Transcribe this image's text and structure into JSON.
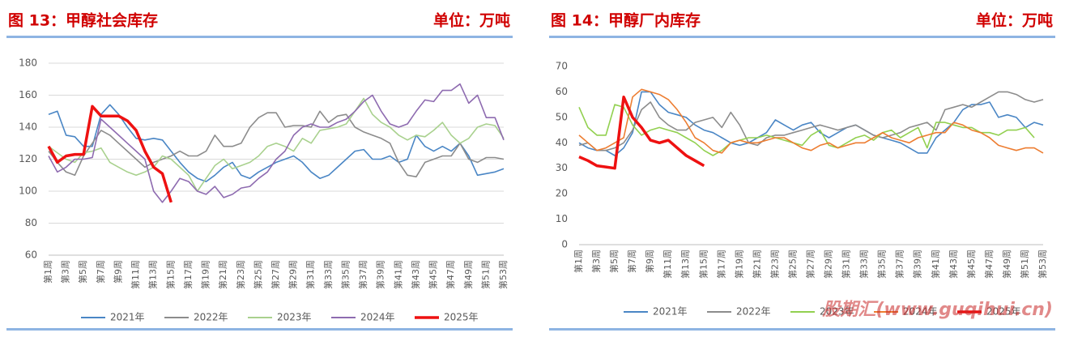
{
  "chart_data": [
    {
      "type": "line",
      "title": "图 13：甲醇社会库存",
      "unit": "单位：万吨",
      "categories": [
        "第1周",
        null,
        "第3周",
        null,
        "第5周",
        null,
        "第7周",
        null,
        "第9周",
        null,
        "第11周",
        null,
        "第13周",
        null,
        "第15周",
        null,
        "第17周",
        null,
        "第19周",
        null,
        "第21周",
        null,
        "第23周",
        null,
        "第25周",
        null,
        "第27周",
        null,
        "第29周",
        null,
        "第31周",
        null,
        "第33周",
        null,
        "第35周",
        null,
        "第37周",
        null,
        "第39周",
        null,
        "第41周",
        null,
        "第43周",
        null,
        "第45周",
        null,
        "第47周",
        null,
        "第49周",
        null,
        "第51周",
        null,
        "第53周"
      ],
      "ylim": [
        60,
        180
      ],
      "yticks": [
        60,
        80,
        100,
        120,
        140,
        160,
        180
      ],
      "grid": true,
      "series": [
        {
          "name": "2021年",
          "color": "#4a86c5",
          "values": [
            148,
            150,
            135,
            134,
            128,
            128,
            148,
            154,
            148,
            140,
            133,
            132,
            133,
            132,
            125,
            118,
            112,
            108,
            106,
            110,
            115,
            118,
            110,
            108,
            112,
            115,
            118,
            120,
            122,
            118,
            112,
            108,
            110,
            115,
            120,
            125,
            126,
            120,
            120,
            122,
            118,
            120,
            135,
            128,
            125,
            128,
            125,
            130,
            122,
            110,
            111,
            112,
            114
          ]
        },
        {
          "name": "2022年",
          "color": "#8c8c8c",
          "values": [
            125,
            118,
            112,
            110,
            122,
            130,
            138,
            135,
            130,
            125,
            120,
            115,
            118,
            120,
            122,
            125,
            122,
            122,
            125,
            135,
            128,
            128,
            130,
            140,
            146,
            149,
            149,
            140,
            141,
            141,
            140,
            150,
            143,
            147,
            148,
            140,
            137,
            135,
            133,
            130,
            118,
            110,
            109,
            118,
            120,
            122,
            122,
            130,
            120,
            118,
            121,
            121,
            120
          ]
        },
        {
          "name": "2023年",
          "color": "#a9d18e",
          "values": [
            128,
            124,
            120,
            118,
            124,
            125,
            127,
            118,
            115,
            112,
            110,
            112,
            115,
            122,
            120,
            115,
            110,
            100,
            108,
            116,
            120,
            114,
            116,
            118,
            122,
            128,
            130,
            128,
            125,
            133,
            130,
            138,
            139,
            140,
            142,
            150,
            158,
            148,
            143,
            140,
            135,
            132,
            135,
            134,
            138,
            143,
            135,
            130,
            133,
            140,
            142,
            141,
            133
          ]
        },
        {
          "name": "2024年",
          "color": "#8e6bb0",
          "values": [
            122,
            112,
            115,
            120,
            120,
            121,
            145,
            140,
            135,
            130,
            125,
            120,
            100,
            93,
            100,
            108,
            106,
            100,
            98,
            103,
            96,
            98,
            102,
            103,
            108,
            112,
            120,
            125,
            135,
            140,
            142,
            140,
            140,
            143,
            145,
            150,
            156,
            160,
            150,
            142,
            140,
            142,
            150,
            157,
            156,
            163,
            163,
            167,
            155,
            160,
            146,
            146,
            132
          ]
        },
        {
          "name": "2025年",
          "color": "#ee1111",
          "values": [
            128,
            118,
            122,
            123,
            123,
            153,
            147,
            147,
            147,
            144,
            138,
            125,
            115,
            111,
            93,
            null,
            null,
            null,
            null,
            null,
            null,
            null,
            null,
            null,
            null,
            null,
            null,
            null,
            null,
            null,
            null,
            null,
            null,
            null,
            null,
            null,
            null,
            null,
            null,
            null,
            null,
            null,
            null,
            null,
            null,
            null,
            null,
            null,
            null,
            null,
            null,
            null,
            null
          ]
        }
      ]
    },
    {
      "type": "line",
      "title": "图 14：甲醇厂内库存",
      "unit": "单位：万吨",
      "categories": [
        "第1周",
        null,
        "第3周",
        null,
        "第5周",
        null,
        "第7周",
        null,
        "第9周",
        null,
        "第11周",
        null,
        "第13周",
        null,
        "第15周",
        null,
        "第17周",
        null,
        "第19周",
        null,
        "第21周",
        null,
        "第23周",
        null,
        "第25周",
        null,
        "第27周",
        null,
        "第29周",
        null,
        "第31周",
        null,
        "第33周",
        null,
        "第35周",
        null,
        "第37周",
        null,
        "第39周",
        null,
        "第41周",
        null,
        "第43周",
        null,
        "第45周",
        null,
        "第47周",
        null,
        "第49周",
        null,
        "第51周",
        null,
        "第53周"
      ],
      "ylim": [
        0,
        70
      ],
      "yticks": [
        0,
        10,
        20,
        30,
        40,
        50,
        60,
        70
      ],
      "grid": false,
      "series": [
        {
          "name": "2021年",
          "color": "#4a86c5",
          "values": [
            40,
            38,
            37,
            37,
            35,
            38,
            44,
            60,
            60,
            55,
            52,
            51,
            50,
            47,
            45,
            44,
            42,
            40,
            39,
            40,
            42,
            44,
            49,
            47,
            45,
            47,
            48,
            44,
            42,
            44,
            46,
            47,
            45,
            43,
            42,
            41,
            40,
            38,
            36,
            36,
            42,
            45,
            48,
            53,
            55,
            55,
            56,
            50,
            51,
            50,
            46,
            48,
            47
          ]
        },
        {
          "name": "2022年",
          "color": "#8c8c8c",
          "values": [
            39,
            40,
            37,
            37,
            38,
            40,
            45,
            53,
            56,
            50,
            47,
            45,
            45,
            48,
            49,
            50,
            46,
            52,
            47,
            40,
            39,
            42,
            43,
            43,
            44,
            45,
            46,
            47,
            46,
            45,
            46,
            47,
            45,
            43,
            42,
            43,
            44,
            46,
            47,
            48,
            45,
            53,
            54,
            55,
            54,
            56,
            58,
            60,
            60,
            59,
            57,
            56,
            57
          ]
        },
        {
          "name": "2023年",
          "color": "#92d050",
          "values": [
            54,
            46,
            43,
            43,
            55,
            54,
            47,
            43,
            45,
            46,
            45,
            44,
            42,
            40,
            37,
            35,
            37,
            40,
            41,
            42,
            42,
            43,
            42,
            41,
            40,
            39,
            43,
            45,
            39,
            38,
            40,
            42,
            43,
            41,
            44,
            45,
            42,
            44,
            46,
            38,
            48,
            48,
            47,
            46,
            46,
            44,
            44,
            43,
            45,
            45,
            46,
            42,
            null
          ]
        },
        {
          "name": "2024年",
          "color": "#ed7d31",
          "values": [
            43,
            40,
            37,
            38,
            40,
            42,
            58,
            61,
            60,
            59,
            57,
            53,
            48,
            42,
            40,
            37,
            36,
            40,
            41,
            40,
            40,
            41,
            42,
            42,
            40,
            38,
            37,
            39,
            40,
            38,
            39,
            40,
            40,
            42,
            44,
            42,
            41,
            40,
            42,
            43,
            44,
            44,
            48,
            47,
            45,
            44,
            42,
            39,
            38,
            37,
            38,
            38,
            36
          ]
        },
        {
          "name": "2025年",
          "color": "#ee1111",
          "values": [
            34.5,
            33,
            31,
            30.5,
            30,
            58,
            50,
            46,
            41,
            40,
            41,
            38,
            35,
            33,
            31,
            null,
            null,
            null,
            null,
            null,
            null,
            null,
            null,
            null,
            null,
            null,
            null,
            null,
            null,
            null,
            null,
            null,
            null,
            null,
            null,
            null,
            null,
            null,
            null,
            null,
            null,
            null,
            null,
            null,
            null,
            null,
            null,
            null,
            null,
            null,
            null,
            null,
            null
          ]
        }
      ]
    }
  ],
  "watermark": "股期汇(www.guqihui.cn)"
}
